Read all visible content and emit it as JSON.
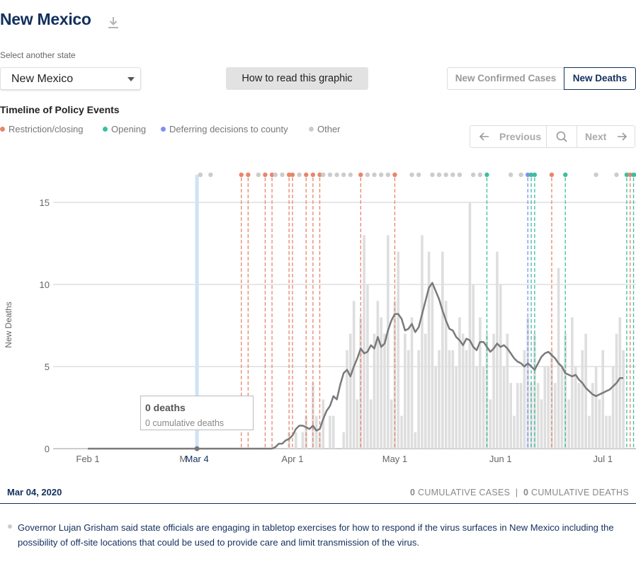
{
  "header": {
    "title": "New Mexico",
    "download_icon": "download-icon"
  },
  "state_select": {
    "label": "Select another state",
    "value": "New Mexico"
  },
  "how_to_read": "How to read this graphic",
  "toggle": {
    "cases_label": "New Confirmed Cases",
    "deaths_label": "New Deaths",
    "active": "New Deaths"
  },
  "timeline": {
    "title": "Timeline of Policy Events",
    "legend": [
      {
        "label": "Restriction/closing",
        "color": "#e8866a"
      },
      {
        "label": "Opening",
        "color": "#3bbfa0"
      },
      {
        "label": "Deferring decisions to county",
        "color": "#7f8ff4"
      },
      {
        "label": "Other",
        "color": "#cccccc"
      }
    ]
  },
  "nav": {
    "previous": "Previous",
    "next": "Next"
  },
  "chart_data": {
    "type": "bar",
    "ylabel": "New Deaths",
    "ylim": [
      0,
      17
    ],
    "yticks": [
      0,
      5,
      10,
      15
    ],
    "x_ticks": [
      {
        "label": "Feb 1",
        "day": 32
      },
      {
        "label": "M",
        "day": 60
      },
      {
        "label": "Apr 1",
        "day": 92
      },
      {
        "label": "May 1",
        "day": 122
      },
      {
        "label": "Jun 1",
        "day": 153
      },
      {
        "label": "Jul 1",
        "day": 183
      }
    ],
    "selected": {
      "label": "Mar 4",
      "day": 64
    },
    "day_range": [
      20,
      200
    ],
    "bar_start_day": 84,
    "bars": [
      0,
      0,
      0,
      0,
      0,
      0,
      0,
      1,
      0,
      1,
      0,
      1,
      2,
      0,
      4,
      2,
      1,
      3,
      0,
      2,
      2,
      0,
      0,
      1,
      6,
      7,
      9,
      3,
      8,
      13,
      10,
      3,
      7,
      9,
      8,
      7,
      13,
      3,
      9,
      12,
      2,
      7,
      6,
      8,
      1,
      6,
      13,
      7,
      12,
      10,
      5,
      6,
      12,
      9,
      6,
      6,
      5,
      8,
      7,
      6,
      15,
      10,
      5,
      8,
      5,
      7,
      3,
      7,
      12,
      10,
      5,
      7,
      4,
      2,
      4,
      4,
      6,
      8,
      4,
      7,
      4,
      3,
      5,
      5,
      6,
      4,
      11,
      5,
      7,
      3,
      8,
      5,
      4,
      6,
      7,
      2,
      4,
      5,
      3,
      6,
      2,
      2,
      5,
      7,
      8,
      6
    ],
    "avg_start_day": 84,
    "avg": [
      0,
      0,
      0,
      0.1,
      0.3,
      0.3,
      0.5,
      0.6,
      0.8,
      1.2,
      1.4,
      1.4,
      1.3,
      1.2,
      1.4,
      1.1,
      1.2,
      1.8,
      2.3,
      2.6,
      3.2,
      3.0,
      3.9,
      4.6,
      4.8,
      4.4,
      5.0,
      5.5,
      6.1,
      5.8,
      5.9,
      6.3,
      6.1,
      6.8,
      6.2,
      6.4,
      7.2,
      7.8,
      8.2,
      8.2,
      7.9,
      7.2,
      7.3,
      7.6,
      7.1,
      7.4,
      8.2,
      9.0,
      9.8,
      10.1,
      9.6,
      9.1,
      8.4,
      7.8,
      7.3,
      7.2,
      6.8,
      6.6,
      6.3,
      6.7,
      6.6,
      6.2,
      6.0,
      6.5,
      6.5,
      6.2,
      5.9,
      6.1,
      6.4,
      6.2,
      6.3,
      6.1,
      5.8,
      5.5,
      5.3,
      5.2,
      5.0,
      5.2,
      5.0,
      4.8,
      5.2,
      5.6,
      5.8,
      5.9,
      5.7,
      5.5,
      5.2,
      5.0,
      4.6,
      4.5,
      4.4,
      4.5,
      4.2,
      4.0,
      3.7,
      3.5,
      3.3,
      3.2,
      3.3,
      3.4,
      3.5,
      3.6,
      3.8,
      4.0,
      4.3,
      4.3
    ],
    "events": [
      {
        "day": 65,
        "type": "other"
      },
      {
        "day": 68,
        "type": "other"
      },
      {
        "day": 77,
        "type": "restriction"
      },
      {
        "day": 79,
        "type": "restriction"
      },
      {
        "day": 82,
        "type": "other"
      },
      {
        "day": 84,
        "type": "restriction"
      },
      {
        "day": 86,
        "type": "restriction"
      },
      {
        "day": 87,
        "type": "other"
      },
      {
        "day": 89,
        "type": "other"
      },
      {
        "day": 91,
        "type": "restriction"
      },
      {
        "day": 92,
        "type": "restriction"
      },
      {
        "day": 94,
        "type": "other"
      },
      {
        "day": 96,
        "type": "restriction"
      },
      {
        "day": 98,
        "type": "restriction"
      },
      {
        "day": 100,
        "type": "restriction"
      },
      {
        "day": 101,
        "type": "other"
      },
      {
        "day": 103,
        "type": "other"
      },
      {
        "day": 105,
        "type": "other"
      },
      {
        "day": 107,
        "type": "other"
      },
      {
        "day": 109,
        "type": "other"
      },
      {
        "day": 112,
        "type": "restriction"
      },
      {
        "day": 114,
        "type": "other"
      },
      {
        "day": 116,
        "type": "other"
      },
      {
        "day": 118,
        "type": "other"
      },
      {
        "day": 120,
        "type": "other"
      },
      {
        "day": 122,
        "type": "restriction"
      },
      {
        "day": 127,
        "type": "other"
      },
      {
        "day": 129,
        "type": "other"
      },
      {
        "day": 133,
        "type": "other"
      },
      {
        "day": 135,
        "type": "other"
      },
      {
        "day": 137,
        "type": "other"
      },
      {
        "day": 139,
        "type": "other"
      },
      {
        "day": 141,
        "type": "other"
      },
      {
        "day": 145,
        "type": "other"
      },
      {
        "day": 147,
        "type": "other"
      },
      {
        "day": 149,
        "type": "opening"
      },
      {
        "day": 156,
        "type": "other"
      },
      {
        "day": 159,
        "type": "other"
      },
      {
        "day": 161,
        "type": "county"
      },
      {
        "day": 162,
        "type": "opening"
      },
      {
        "day": 163,
        "type": "opening"
      },
      {
        "day": 168,
        "type": "restriction"
      },
      {
        "day": 172,
        "type": "opening"
      },
      {
        "day": 181,
        "type": "other"
      },
      {
        "day": 187,
        "type": "other"
      },
      {
        "day": 190,
        "type": "opening"
      },
      {
        "day": 191,
        "type": "restriction"
      },
      {
        "day": 192,
        "type": "opening"
      },
      {
        "day": 193,
        "type": "opening"
      },
      {
        "day": 195,
        "type": "other"
      },
      {
        "day": 201,
        "type": "other"
      },
      {
        "day": 205,
        "type": "other"
      },
      {
        "day": 207,
        "type": "other"
      },
      {
        "day": 214,
        "type": "restriction"
      },
      {
        "day": 219,
        "type": "opening"
      },
      {
        "day": 226,
        "type": "other"
      },
      {
        "day": 229,
        "type": "other"
      },
      {
        "day": 242,
        "type": "other"
      },
      {
        "day": 244,
        "type": "other"
      },
      {
        "day": 246,
        "type": "other"
      }
    ],
    "tooltip": {
      "main": "0 deaths",
      "sub": "0 cumulative deaths"
    }
  },
  "footer": {
    "date": "Mar 04, 2020",
    "cum_cases_value": "0",
    "cum_cases_label": "CUMULATIVE CASES",
    "separator": "|",
    "cum_deaths_value": "0",
    "cum_deaths_label": "CUMULATIVE DEATHS"
  },
  "event_text": "Governor Lujan Grisham said state officials are engaging in tabletop exercises for how to respond if the virus surfaces in New Mexico including the possibility of off-site locations that could be used to provide care and limit transmission of the virus.",
  "colors": {
    "navy": "#12305d",
    "bar": "#dedede",
    "avg_line": "#7a7a7a",
    "selected_band": "#cfe3f6"
  }
}
